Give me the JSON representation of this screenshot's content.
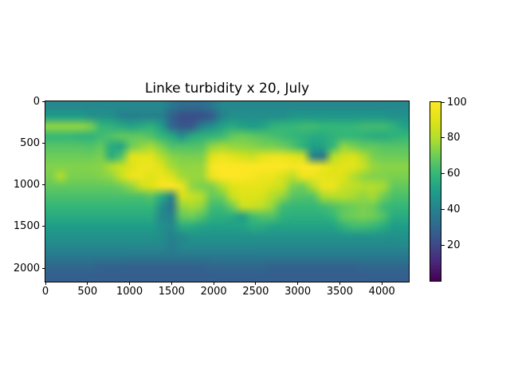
{
  "figure": {
    "title": "Linke turbidity x 20, July",
    "background_color": "#ffffff"
  },
  "axes": {
    "x_ticks": [
      0,
      500,
      1000,
      1500,
      2000,
      2500,
      3000,
      3500,
      4000
    ],
    "y_ticks": [
      0,
      500,
      1000,
      1500,
      2000
    ],
    "x_max": 4320,
    "y_max": 2160
  },
  "colorbar": {
    "ticks": [
      20,
      40,
      60,
      80,
      100
    ],
    "vmin": 0,
    "vmax": 100
  },
  "chart_data": {
    "type": "heatmap",
    "title": "Linke turbidity x 20, July",
    "xlabel": "",
    "ylabel": "",
    "x_range": [
      0,
      4320
    ],
    "y_range": [
      0,
      2160
    ],
    "value_range": [
      0,
      100
    ],
    "colormap": "viridis",
    "colormap_stops": [
      "#440154",
      "#482878",
      "#3e4989",
      "#31688e",
      "#26828e",
      "#1f9e89",
      "#35b779",
      "#6dcd59",
      "#b4de2c",
      "#dfe318",
      "#fde725"
    ],
    "legend": "colorbar right, ticks 20-100",
    "grid_cols": 36,
    "grid_rows": 18,
    "grid": [
      [
        42,
        42,
        42,
        42,
        42,
        42,
        42,
        42,
        42,
        42,
        42,
        42,
        36,
        32,
        32,
        32,
        36,
        42,
        42,
        42,
        42,
        42,
        42,
        42,
        42,
        42,
        42,
        42,
        42,
        42,
        42,
        42,
        42,
        42,
        42,
        42
      ],
      [
        50,
        50,
        50,
        50,
        46,
        46,
        46,
        40,
        40,
        40,
        40,
        40,
        28,
        22,
        22,
        22,
        26,
        40,
        45,
        45,
        45,
        45,
        45,
        45,
        48,
        48,
        48,
        48,
        48,
        48,
        48,
        48,
        48,
        48,
        46,
        46
      ],
      [
        75,
        75,
        75,
        75,
        72,
        60,
        58,
        55,
        52,
        55,
        58,
        50,
        30,
        25,
        25,
        40,
        45,
        52,
        55,
        52,
        50,
        52,
        58,
        60,
        60,
        62,
        62,
        60,
        60,
        60,
        60,
        62,
        62,
        62,
        58,
        52
      ],
      [
        60,
        60,
        60,
        58,
        58,
        62,
        65,
        68,
        68,
        68,
        65,
        60,
        55,
        45,
        55,
        58,
        60,
        62,
        68,
        70,
        68,
        66,
        64,
        62,
        60,
        58,
        55,
        55,
        58,
        60,
        60,
        58,
        56,
        55,
        58,
        60
      ],
      [
        66,
        66,
        66,
        66,
        65,
        68,
        55,
        52,
        70,
        75,
        78,
        72,
        65,
        65,
        65,
        66,
        75,
        78,
        76,
        75,
        74,
        72,
        72,
        70,
        65,
        58,
        50,
        52,
        60,
        75,
        72,
        68,
        68,
        66,
        66,
        66
      ],
      [
        70,
        70,
        70,
        70,
        70,
        72,
        55,
        65,
        92,
        92,
        92,
        80,
        74,
        72,
        72,
        72,
        90,
        95,
        92,
        88,
        85,
        92,
        95,
        95,
        92,
        88,
        40,
        35,
        80,
        88,
        90,
        80,
        72,
        70,
        70,
        70
      ],
      [
        73,
        73,
        73,
        73,
        73,
        74,
        80,
        85,
        90,
        95,
        95,
        90,
        78,
        75,
        75,
        76,
        98,
        100,
        100,
        100,
        100,
        100,
        100,
        100,
        98,
        100,
        100,
        95,
        90,
        92,
        92,
        85,
        76,
        74,
        74,
        74
      ],
      [
        72,
        80,
        72,
        72,
        72,
        73,
        75,
        85,
        95,
        95,
        90,
        95,
        90,
        78,
        76,
        76,
        95,
        100,
        100,
        100,
        98,
        95,
        95,
        88,
        82,
        95,
        95,
        92,
        92,
        90,
        80,
        75,
        73,
        73,
        72,
        72
      ],
      [
        68,
        68,
        68,
        68,
        68,
        68,
        68,
        70,
        75,
        85,
        90,
        98,
        100,
        95,
        75,
        72,
        72,
        80,
        90,
        92,
        92,
        92,
        88,
        85,
        72,
        70,
        80,
        95,
        95,
        85,
        82,
        80,
        80,
        78,
        68,
        68
      ],
      [
        64,
        64,
        64,
        64,
        64,
        64,
        64,
        64,
        64,
        64,
        66,
        55,
        40,
        88,
        85,
        80,
        68,
        70,
        85,
        90,
        90,
        88,
        80,
        75,
        66,
        65,
        65,
        78,
        80,
        80,
        78,
        75,
        78,
        70,
        64,
        64
      ],
      [
        60,
        60,
        60,
        60,
        60,
        60,
        60,
        60,
        60,
        60,
        60,
        45,
        35,
        75,
        78,
        75,
        62,
        62,
        70,
        85,
        85,
        82,
        75,
        62,
        60,
        60,
        60,
        62,
        65,
        68,
        70,
        72,
        70,
        62,
        60,
        60
      ],
      [
        55,
        55,
        55,
        55,
        55,
        55,
        55,
        55,
        55,
        55,
        55,
        42,
        40,
        68,
        70,
        65,
        57,
        57,
        55,
        50,
        62,
        65,
        65,
        58,
        57,
        57,
        57,
        57,
        60,
        68,
        70,
        72,
        70,
        65,
        55,
        55
      ],
      [
        50,
        50,
        50,
        50,
        50,
        50,
        50,
        50,
        50,
        50,
        50,
        45,
        42,
        55,
        55,
        52,
        51,
        51,
        51,
        52,
        55,
        55,
        52,
        52,
        52,
        52,
        52,
        52,
        52,
        58,
        62,
        62,
        60,
        55,
        50,
        50
      ],
      [
        46,
        46,
        46,
        46,
        46,
        46,
        46,
        46,
        46,
        46,
        46,
        44,
        40,
        42,
        46,
        46,
        46,
        46,
        46,
        46,
        46,
        46,
        46,
        46,
        46,
        46,
        46,
        46,
        46,
        46,
        46,
        46,
        46,
        46,
        45,
        46
      ],
      [
        42,
        42,
        42,
        42,
        42,
        42,
        42,
        42,
        42,
        42,
        42,
        42,
        38,
        42,
        42,
        42,
        42,
        42,
        42,
        42,
        42,
        42,
        42,
        42,
        42,
        42,
        42,
        42,
        42,
        42,
        42,
        42,
        42,
        42,
        42,
        42
      ],
      [
        37,
        37,
        37,
        37,
        37,
        37,
        37,
        37,
        36,
        36,
        36,
        36,
        36,
        36,
        36,
        36,
        36,
        36,
        36,
        36,
        36,
        37,
        37,
        37,
        37,
        37,
        37,
        37,
        37,
        37,
        37,
        37,
        37,
        37,
        37,
        37
      ],
      [
        30,
        30,
        30,
        30,
        30,
        28,
        28,
        28,
        28,
        28,
        28,
        28,
        28,
        28,
        28,
        28,
        30,
        30,
        30,
        30,
        30,
        30,
        28,
        28,
        28,
        28,
        28,
        28,
        28,
        28,
        28,
        30,
        30,
        30,
        30,
        30
      ],
      [
        27,
        27,
        27,
        27,
        27,
        27,
        27,
        27,
        27,
        27,
        27,
        27,
        27,
        27,
        27,
        27,
        27,
        27,
        27,
        27,
        27,
        27,
        27,
        27,
        27,
        27,
        27,
        27,
        27,
        27,
        27,
        27,
        27,
        27,
        27,
        27
      ]
    ]
  }
}
